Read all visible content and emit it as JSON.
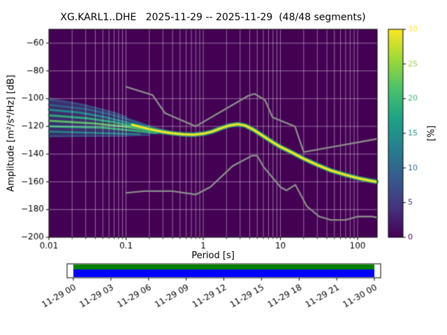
{
  "chart_data": {
    "type": "heatmap",
    "title": "XG.KARL1..DHE   2025-11-29 -- 2025-11-29  (48/48 segments)",
    "xlabel": "Period [s]",
    "ylabel": "Amplitude [m²/s⁴/Hz] [dB]",
    "xscale": "log",
    "xlim": [
      0.01,
      179
    ],
    "ylim": [
      -200,
      -50
    ],
    "grid": true,
    "xticks": {
      "values": [
        0.01,
        0.1,
        1,
        10,
        100
      ],
      "labels": [
        "0.01",
        "0.1",
        "1",
        "10",
        "100"
      ]
    },
    "yticks": {
      "values": [
        -200,
        -180,
        -160,
        -140,
        -120,
        -100,
        -80,
        -60
      ],
      "labels": [
        "−200",
        "−180",
        "−160",
        "−140",
        "−120",
        "−100",
        "−80",
        "−60"
      ]
    },
    "colors": {
      "background": "#440154",
      "grid": "rgba(255,255,255,0.55)",
      "noise_model": "#8a8a8a",
      "mode_line": "#f8e621",
      "mode_halo": "#2fb47c",
      "spread_band": "rgba(49,104,142,0.45)",
      "timeline_green": "#008000",
      "timeline_blue": "#0000ff"
    },
    "colorbar": {
      "label": "[%]",
      "colormap": "viridis",
      "range": [
        0,
        30
      ],
      "ticks": {
        "values": [
          0,
          5,
          10,
          15,
          20,
          25,
          30
        ],
        "labels": [
          "0",
          "5",
          "10",
          "15",
          "20",
          "25",
          "30"
        ]
      },
      "stops": [
        [
          0,
          "#440154"
        ],
        [
          0.14,
          "#46327e"
        ],
        [
          0.29,
          "#365c8d"
        ],
        [
          0.43,
          "#277f8e"
        ],
        [
          0.57,
          "#1fa187"
        ],
        [
          0.71,
          "#4ac16d"
        ],
        [
          0.86,
          "#a0da39"
        ],
        [
          1,
          "#fde725"
        ]
      ]
    },
    "psd_mode_curve": [
      [
        0.12,
        -119
      ],
      [
        0.2,
        -122
      ],
      [
        0.3,
        -124
      ],
      [
        0.4,
        -125
      ],
      [
        0.55,
        -125.7
      ],
      [
        0.75,
        -126
      ],
      [
        1.0,
        -125.3
      ],
      [
        1.3,
        -123.8
      ],
      [
        1.7,
        -121.3
      ],
      [
        2.2,
        -119.3
      ],
      [
        2.8,
        -118.4
      ],
      [
        3.5,
        -119.4
      ],
      [
        4.5,
        -122.5
      ],
      [
        6,
        -127
      ],
      [
        8,
        -131.5
      ],
      [
        10,
        -134.8
      ],
      [
        14,
        -138.8
      ],
      [
        20,
        -143.3
      ],
      [
        30,
        -147.8
      ],
      [
        45,
        -151.8
      ],
      [
        70,
        -155
      ],
      [
        100,
        -157.3
      ],
      [
        140,
        -159
      ],
      [
        175,
        -160
      ]
    ],
    "left_spread": {
      "upper": [
        [
          0.01,
          -99
        ],
        [
          0.03,
          -104
        ],
        [
          0.06,
          -109
        ],
        [
          0.1,
          -113
        ],
        [
          0.2,
          -119
        ],
        [
          0.35,
          -122.5
        ]
      ],
      "lower": [
        [
          0.01,
          -128
        ],
        [
          0.03,
          -127.5
        ],
        [
          0.06,
          -127
        ],
        [
          0.1,
          -126.5
        ],
        [
          0.2,
          -126
        ],
        [
          0.35,
          -125.5
        ]
      ],
      "streaks": [
        {
          "color": "#3b528b",
          "width": 2,
          "points": [
            [
              0.01,
              -101
            ],
            [
              0.02,
              -103
            ],
            [
              0.04,
              -106.5
            ],
            [
              0.07,
              -110
            ],
            [
              0.1,
              -113
            ]
          ]
        },
        {
          "color": "#31688e",
          "width": 2.5,
          "points": [
            [
              0.01,
              -104.5
            ],
            [
              0.03,
              -107.5
            ],
            [
              0.06,
              -111
            ],
            [
              0.12,
              -116
            ],
            [
              0.2,
              -120
            ]
          ]
        },
        {
          "color": "#21918c",
          "width": 3,
          "points": [
            [
              0.01,
              -108
            ],
            [
              0.025,
              -110
            ],
            [
              0.05,
              -113
            ],
            [
              0.1,
              -117
            ],
            [
              0.18,
              -120.8
            ]
          ]
        },
        {
          "color": "#2fb47c",
          "width": 3,
          "points": [
            [
              0.01,
              -112
            ],
            [
              0.03,
              -114
            ],
            [
              0.07,
              -117
            ],
            [
              0.15,
              -120.8
            ],
            [
              0.3,
              -123.8
            ]
          ]
        },
        {
          "color": "#5ec962",
          "width": 3,
          "points": [
            [
              0.01,
              -116
            ],
            [
              0.04,
              -118
            ],
            [
              0.09,
              -120
            ],
            [
              0.2,
              -122.8
            ],
            [
              0.4,
              -124.8
            ]
          ]
        },
        {
          "color": "#35b779",
          "width": 3,
          "points": [
            [
              0.01,
              -120
            ],
            [
              0.05,
              -121
            ],
            [
              0.12,
              -123
            ],
            [
              0.25,
              -124.8
            ]
          ]
        },
        {
          "color": "#21918c",
          "width": 2.5,
          "points": [
            [
              0.01,
              -123.8
            ],
            [
              0.06,
              -125
            ],
            [
              0.15,
              -125.8
            ]
          ]
        },
        {
          "color": "#3b528b",
          "width": 2,
          "points": [
            [
              0.01,
              -127
            ],
            [
              0.08,
              -127
            ],
            [
              0.2,
              -126.3
            ]
          ]
        }
      ]
    },
    "noise_models": {
      "high": [
        [
          0.1,
          -91.5
        ],
        [
          0.22,
          -97.4
        ],
        [
          0.32,
          -110.5
        ],
        [
          0.8,
          -120
        ],
        [
          3.8,
          -98
        ],
        [
          4.6,
          -96.5
        ],
        [
          6.3,
          -101
        ],
        [
          7.9,
          -113.5
        ],
        [
          15.4,
          -120
        ],
        [
          20,
          -138.5
        ],
        [
          179,
          -129
        ]
      ],
      "low": [
        [
          0.1,
          -168
        ],
        [
          0.17,
          -166.7
        ],
        [
          0.4,
          -166.7
        ],
        [
          0.8,
          -169.2
        ],
        [
          1.24,
          -163.7
        ],
        [
          2.4,
          -148.6
        ],
        [
          4.3,
          -141.1
        ],
        [
          5,
          -141.1
        ],
        [
          6,
          -149
        ],
        [
          10,
          -163.8
        ],
        [
          12,
          -166.2
        ],
        [
          15.6,
          -162.1
        ],
        [
          21.9,
          -177.5
        ],
        [
          31.6,
          -185
        ],
        [
          45,
          -187.5
        ],
        [
          70,
          -187.5
        ],
        [
          101,
          -185
        ],
        [
          154,
          -185
        ],
        [
          179,
          -185.8
        ]
      ]
    },
    "timeline": {
      "labels": [
        "11-29 00",
        "11-29 03",
        "11-29 06",
        "11-29 09",
        "11-29 12",
        "11-29 15",
        "11-29 18",
        "11-29 21",
        "11-30 00"
      ],
      "hours": [
        0,
        3,
        6,
        9,
        12,
        15,
        18,
        21,
        24
      ],
      "axis_range_hours": [
        -0.5,
        24.5
      ],
      "coverage_hours": [
        0,
        24
      ]
    }
  }
}
